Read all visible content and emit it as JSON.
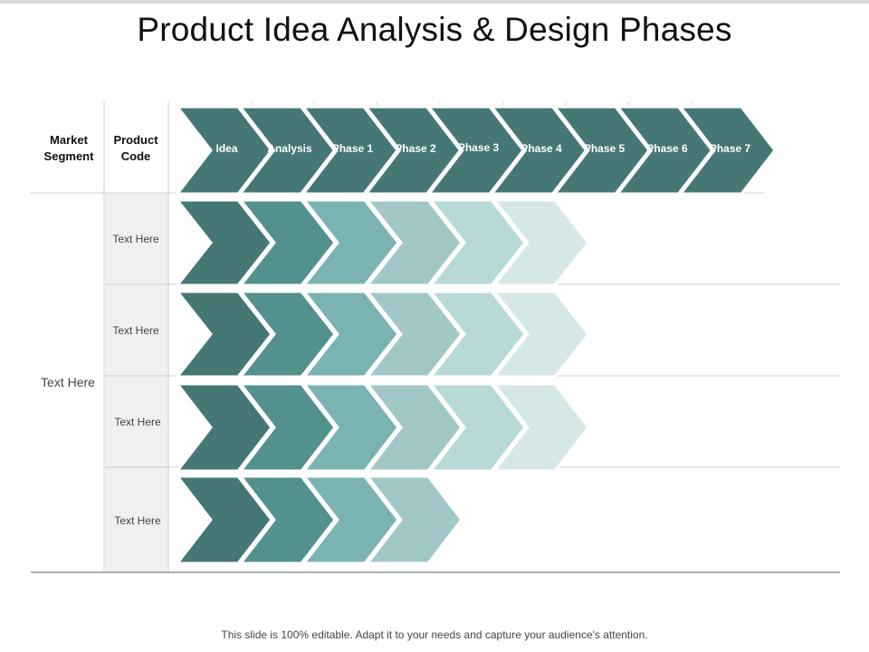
{
  "title": "Product Idea Analysis & Design Phases",
  "footer": "This slide is 100% editable. Adapt it to your needs and capture your audience's attention.",
  "headers": {
    "market_segment": [
      "Market",
      "Segment"
    ],
    "product_code": [
      "Product",
      "Code"
    ]
  },
  "market_segment_value": "Text Here",
  "phases": [
    "Idea",
    "Analysis",
    "Phase 1",
    "Phase 2",
    "Phase 3",
    "Phase 4",
    "Phase 5",
    "Phase 6",
    "Phase 7"
  ],
  "rows": [
    {
      "label": "Text Here",
      "filled_steps": 6
    },
    {
      "label": "Text Here",
      "filled_steps": 6
    },
    {
      "label": "Text Here",
      "filled_steps": 6
    },
    {
      "label": "Text Here",
      "filled_steps": 4
    }
  ],
  "colors": {
    "header_chevron": "#457775",
    "step_shades": [
      "#457775",
      "#52918e",
      "#7ab3b1",
      "#a1c8c7",
      "#b7d9d8",
      "#d6e7e7"
    ],
    "grid_line": "#cfcfcf",
    "column_fill": "#f0f0f0"
  }
}
